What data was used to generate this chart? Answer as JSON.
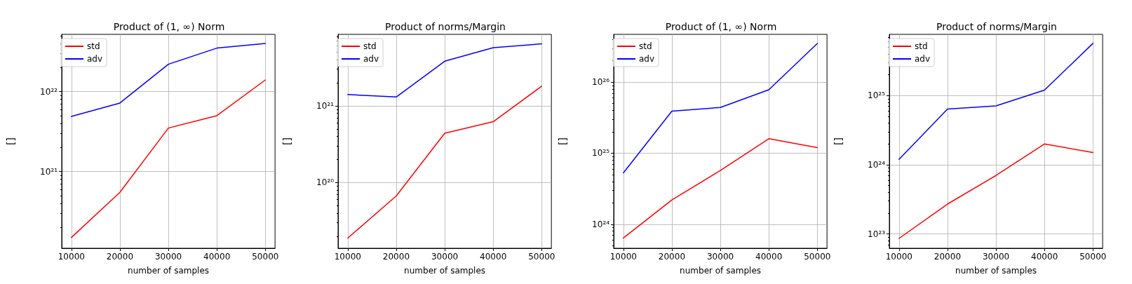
{
  "chart_data": [
    {
      "type": "line",
      "title": "Product of (1, ∞) Norm",
      "xlabel": "number of samples",
      "ylabel": "[]",
      "x": [
        10000,
        20000,
        30000,
        40000,
        50000
      ],
      "log": "y",
      "grid": true,
      "legend": "top left",
      "xlim": [
        8000,
        52000
      ],
      "xticks": [
        10000,
        20000,
        30000,
        40000,
        50000
      ],
      "ylim": [
        1.1e+20,
        5.2e+22
      ],
      "yticks": [
        {
          "value": 2e+20,
          "label": null
        },
        {
          "value": 3e+20,
          "label": null
        },
        {
          "value": 4e+20,
          "label": null
        },
        {
          "value": 5e+20,
          "label": null
        },
        {
          "value": 6e+20,
          "label": null
        },
        {
          "value": 7e+20,
          "label": null
        },
        {
          "value": 8e+20,
          "label": null
        },
        {
          "value": 9e+20,
          "label": null
        },
        {
          "value": 1e+21,
          "label": "10²¹"
        },
        {
          "value": 2e+21,
          "label": null
        },
        {
          "value": 3e+21,
          "label": null
        },
        {
          "value": 4e+21,
          "label": null
        },
        {
          "value": 5e+21,
          "label": null
        },
        {
          "value": 6e+21,
          "label": null
        },
        {
          "value": 7e+21,
          "label": null
        },
        {
          "value": 8e+21,
          "label": null
        },
        {
          "value": 9e+21,
          "label": null
        },
        {
          "value": 1e+22,
          "label": "10²²"
        },
        {
          "value": 2e+22,
          "label": null
        },
        {
          "value": 3e+22,
          "label": null
        },
        {
          "value": 4e+22,
          "label": null
        },
        {
          "value": 5e+22,
          "label": null
        }
      ],
      "series": [
        {
          "name": "std",
          "color": "#ff0000",
          "values": [
            1.5e+20,
            5.5e+20,
            3.5e+21,
            5e+21,
            1.4e+22
          ]
        },
        {
          "name": "adv",
          "color": "#0000ff",
          "values": [
            4.9e+21,
            7.2e+21,
            2.2e+22,
            3.5e+22,
            4e+22
          ]
        }
      ]
    },
    {
      "type": "line",
      "title": "Product of norms/Margin",
      "xlabel": "number of samples",
      "ylabel": "[]",
      "x": [
        10000,
        20000,
        30000,
        40000,
        50000
      ],
      "log": "y",
      "grid": true,
      "legend": "top left",
      "xlim": [
        8000,
        52000
      ],
      "xticks": [
        10000,
        20000,
        30000,
        40000,
        50000
      ],
      "ylim": [
        1.4e+19,
        8.5e+21
      ],
      "yticks": [
        {
          "value": 2e+19,
          "label": null
        },
        {
          "value": 3e+19,
          "label": null
        },
        {
          "value": 4e+19,
          "label": null
        },
        {
          "value": 5e+19,
          "label": null
        },
        {
          "value": 6e+19,
          "label": null
        },
        {
          "value": 7e+19,
          "label": null
        },
        {
          "value": 8e+19,
          "label": null
        },
        {
          "value": 9e+19,
          "label": null
        },
        {
          "value": 1e+20,
          "label": "10²⁰"
        },
        {
          "value": 2e+20,
          "label": null
        },
        {
          "value": 3e+20,
          "label": null
        },
        {
          "value": 4e+20,
          "label": null
        },
        {
          "value": 5e+20,
          "label": null
        },
        {
          "value": 6e+20,
          "label": null
        },
        {
          "value": 7e+20,
          "label": null
        },
        {
          "value": 8e+20,
          "label": null
        },
        {
          "value": 9e+20,
          "label": null
        },
        {
          "value": 1e+21,
          "label": "10²¹"
        },
        {
          "value": 2e+21,
          "label": null
        },
        {
          "value": 3e+21,
          "label": null
        },
        {
          "value": 4e+21,
          "label": null
        },
        {
          "value": 5e+21,
          "label": null
        },
        {
          "value": 6e+21,
          "label": null
        },
        {
          "value": 7e+21,
          "label": null
        },
        {
          "value": 8e+21,
          "label": null
        }
      ],
      "series": [
        {
          "name": "std",
          "color": "#ff0000",
          "values": [
            1.9e+19,
            6.7e+19,
            4.4e+20,
            6.2e+20,
            1.8e+21
          ]
        },
        {
          "name": "adv",
          "color": "#0000ff",
          "values": [
            1.4e+21,
            1.3e+21,
            3.8e+21,
            5.7e+21,
            6.4e+21
          ]
        }
      ]
    },
    {
      "type": "line",
      "title": "Product of (1, ∞) Norm",
      "xlabel": "number of samples",
      "ylabel": "[]",
      "x": [
        10000,
        20000,
        30000,
        40000,
        50000
      ],
      "log": "y",
      "grid": true,
      "legend": "top left",
      "xlim": [
        8000,
        52000
      ],
      "xticks": [
        10000,
        20000,
        30000,
        40000,
        50000
      ],
      "ylim": [
        4.6e+23,
        4.7e+26
      ],
      "yticks": [
        {
          "value": 5e+23,
          "label": null
        },
        {
          "value": 6e+23,
          "label": null
        },
        {
          "value": 7e+23,
          "label": null
        },
        {
          "value": 8e+23,
          "label": null
        },
        {
          "value": 9e+23,
          "label": null
        },
        {
          "value": 1e+24,
          "label": "10²⁴"
        },
        {
          "value": 2e+24,
          "label": null
        },
        {
          "value": 3e+24,
          "label": null
        },
        {
          "value": 4e+24,
          "label": null
        },
        {
          "value": 5e+24,
          "label": null
        },
        {
          "value": 6e+24,
          "label": null
        },
        {
          "value": 7e+24,
          "label": null
        },
        {
          "value": 8e+24,
          "label": null
        },
        {
          "value": 9e+24,
          "label": null
        },
        {
          "value": 1e+25,
          "label": "10²⁵"
        },
        {
          "value": 2e+25,
          "label": null
        },
        {
          "value": 3e+25,
          "label": null
        },
        {
          "value": 4e+25,
          "label": null
        },
        {
          "value": 5e+25,
          "label": null
        },
        {
          "value": 6e+25,
          "label": null
        },
        {
          "value": 7e+25,
          "label": null
        },
        {
          "value": 8e+25,
          "label": null
        },
        {
          "value": 9e+25,
          "label": null
        },
        {
          "value": 1e+26,
          "label": "10²⁶"
        },
        {
          "value": 2e+26,
          "label": null
        },
        {
          "value": 3e+26,
          "label": null
        },
        {
          "value": 4e+26,
          "label": null
        }
      ],
      "series": [
        {
          "name": "std",
          "color": "#ff0000",
          "values": [
            6.4e+23,
            2.2e+24,
            5.7e+24,
            1.6e+25,
            1.2e+25
          ]
        },
        {
          "name": "adv",
          "color": "#0000ff",
          "values": [
            5.3e+24,
            3.9e+25,
            4.4e+25,
            7.8e+25,
            3.5e+26
          ]
        }
      ]
    },
    {
      "type": "line",
      "title": "Product of norms/Margin",
      "xlabel": "number of samples",
      "ylabel": "[]",
      "x": [
        10000,
        20000,
        30000,
        40000,
        50000
      ],
      "log": "y",
      "grid": true,
      "legend": "top left",
      "xlim": [
        8000,
        52000
      ],
      "xticks": [
        10000,
        20000,
        30000,
        40000,
        50000
      ],
      "ylim": [
        6.2e+22,
        7.7e+25
      ],
      "yticks": [
        {
          "value": 7e+22,
          "label": null
        },
        {
          "value": 8e+22,
          "label": null
        },
        {
          "value": 9e+22,
          "label": null
        },
        {
          "value": 1e+23,
          "label": "10²³"
        },
        {
          "value": 2e+23,
          "label": null
        },
        {
          "value": 3e+23,
          "label": null
        },
        {
          "value": 4e+23,
          "label": null
        },
        {
          "value": 5e+23,
          "label": null
        },
        {
          "value": 6e+23,
          "label": null
        },
        {
          "value": 7e+23,
          "label": null
        },
        {
          "value": 8e+23,
          "label": null
        },
        {
          "value": 9e+23,
          "label": null
        },
        {
          "value": 1e+24,
          "label": "10²⁴"
        },
        {
          "value": 2e+24,
          "label": null
        },
        {
          "value": 3e+24,
          "label": null
        },
        {
          "value": 4e+24,
          "label": null
        },
        {
          "value": 5e+24,
          "label": null
        },
        {
          "value": 6e+24,
          "label": null
        },
        {
          "value": 7e+24,
          "label": null
        },
        {
          "value": 8e+24,
          "label": null
        },
        {
          "value": 9e+24,
          "label": null
        },
        {
          "value": 1e+25,
          "label": "10²⁵"
        },
        {
          "value": 2e+25,
          "label": null
        },
        {
          "value": 3e+25,
          "label": null
        },
        {
          "value": 4e+25,
          "label": null
        },
        {
          "value": 5e+25,
          "label": null
        },
        {
          "value": 6e+25,
          "label": null
        },
        {
          "value": 7e+25,
          "label": null
        }
      ],
      "series": [
        {
          "name": "std",
          "color": "#ff0000",
          "values": [
            8.6e+22,
            2.7e+23,
            7e+23,
            2e+24,
            1.5e+24
          ]
        },
        {
          "name": "adv",
          "color": "#0000ff",
          "values": [
            1.2e+24,
            6.4e+24,
            7.1e+24,
            1.2e+25,
            5.7e+25
          ]
        }
      ]
    }
  ]
}
